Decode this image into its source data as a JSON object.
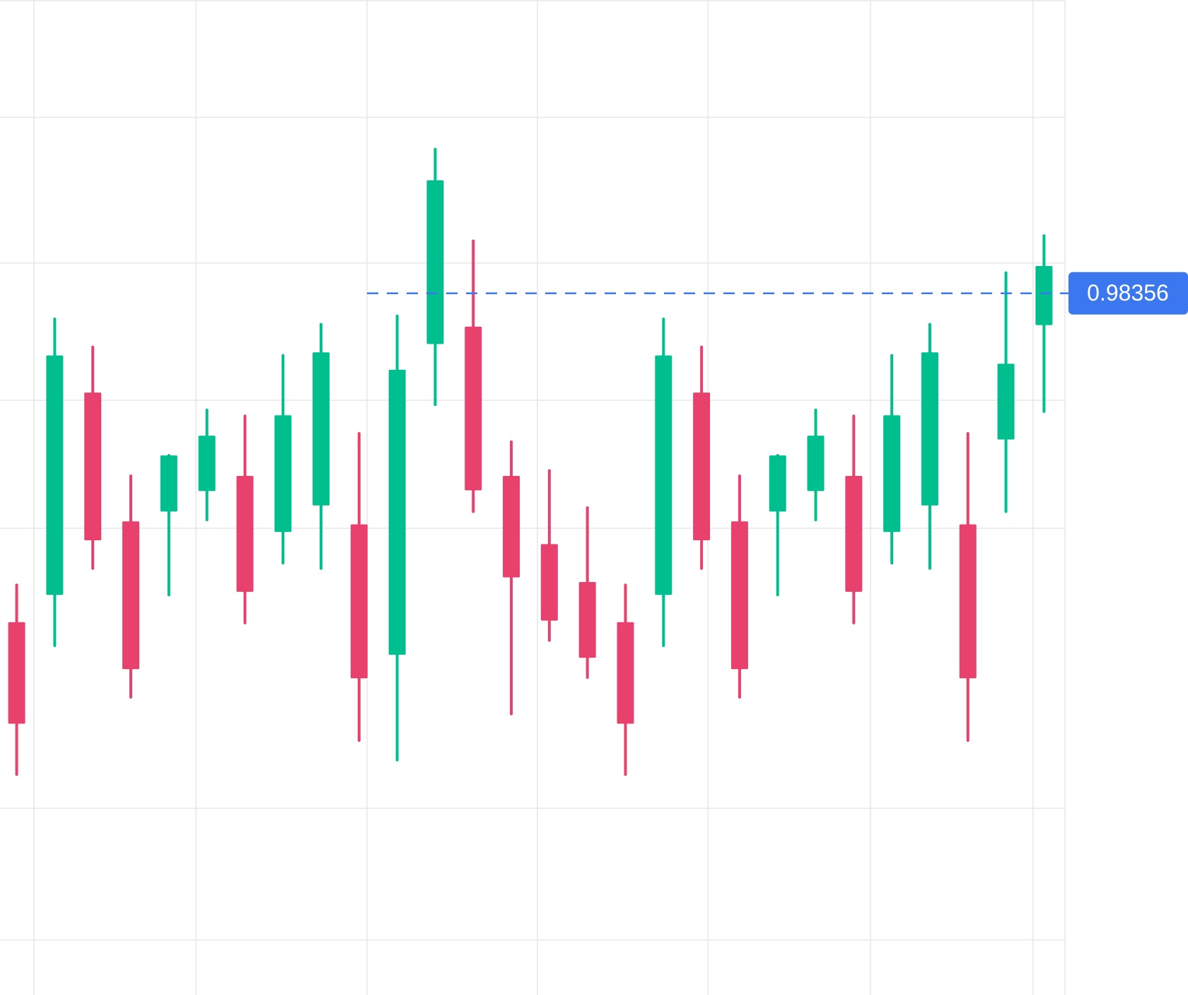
{
  "chart_data": {
    "type": "candlestick",
    "categories": [
      null,
      null,
      null,
      null,
      null,
      null,
      null,
      null,
      null,
      null,
      null,
      null,
      null,
      null,
      null,
      null,
      null,
      null,
      null,
      null,
      null,
      null,
      null,
      null,
      null,
      null,
      null,
      null
    ],
    "open": [
      0.96186,
      0.96366,
      0.97701,
      0.96851,
      0.96916,
      0.97051,
      0.97151,
      0.96781,
      0.96956,
      0.96831,
      0.95971,
      0.98021,
      0.98136,
      0.97151,
      0.96701,
      0.96451,
      0.96186,
      0.96366,
      0.97701,
      0.96851,
      0.96916,
      0.97051,
      0.97151,
      0.96781,
      0.96956,
      0.96831,
      0.97391,
      0.98146
    ],
    "high": [
      0.96431,
      0.98186,
      0.98001,
      0.97151,
      0.97286,
      0.97586,
      0.97546,
      0.97946,
      0.98151,
      0.97431,
      0.98206,
      0.99306,
      0.98701,
      0.97376,
      0.97186,
      0.96941,
      0.96431,
      0.98186,
      0.98001,
      0.97151,
      0.97286,
      0.97586,
      0.97546,
      0.97946,
      0.98151,
      0.97431,
      0.98491,
      0.98736
    ],
    "low": [
      0.95181,
      0.96031,
      0.96541,
      0.95691,
      0.96366,
      0.96861,
      0.96181,
      0.96576,
      0.96541,
      0.95406,
      0.95276,
      0.97621,
      0.96916,
      0.95581,
      0.96066,
      0.95821,
      0.95181,
      0.96031,
      0.96541,
      0.95691,
      0.96366,
      0.96861,
      0.96181,
      0.96576,
      0.96541,
      0.95406,
      0.96916,
      0.97576
    ],
    "close": [
      0.95516,
      0.97946,
      0.96726,
      0.95876,
      0.97286,
      0.97416,
      0.96386,
      0.97551,
      0.97966,
      0.95816,
      0.97851,
      0.99101,
      0.97056,
      0.96481,
      0.96196,
      0.95951,
      0.95516,
      0.97946,
      0.96726,
      0.95876,
      0.97286,
      0.97416,
      0.96386,
      0.97551,
      0.97966,
      0.95816,
      0.97891,
      0.98536
    ],
    "up_color": "#00bf8f",
    "down_color": "#e8416d",
    "ylim": [
      0.93726,
      1.00291
    ],
    "price_line": 0.98356,
    "price_line_color": "#3b78f0"
  }
}
